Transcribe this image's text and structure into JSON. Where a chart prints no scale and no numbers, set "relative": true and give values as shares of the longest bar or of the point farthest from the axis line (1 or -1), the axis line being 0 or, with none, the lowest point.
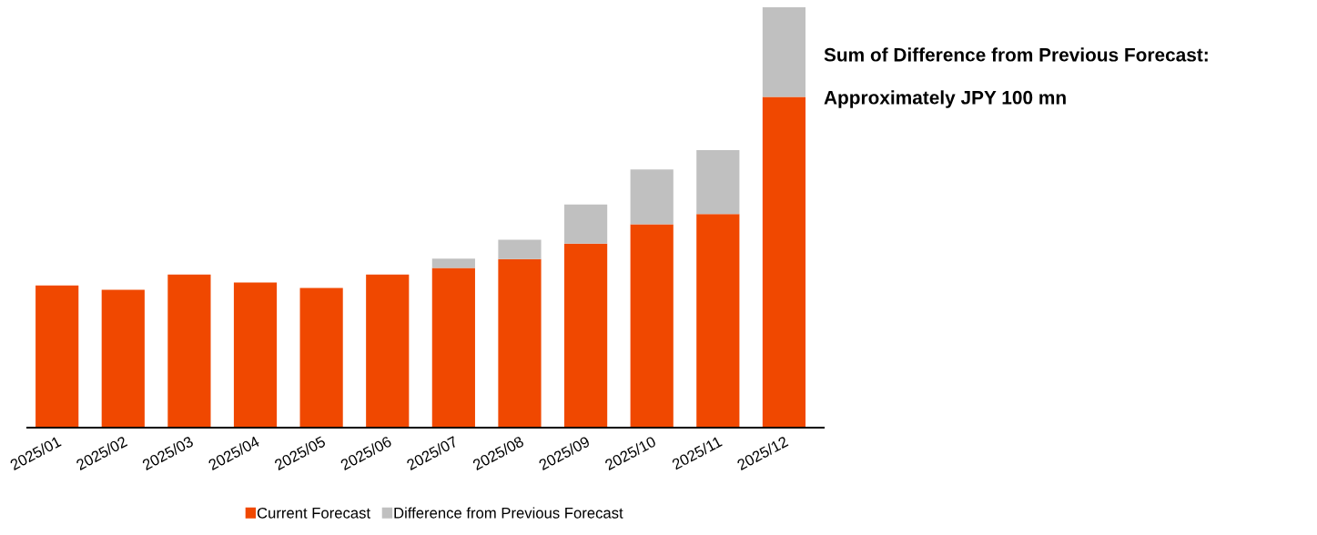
{
  "chart_data": {
    "type": "bar",
    "stacked": true,
    "relative": true,
    "categories": [
      "2025/01",
      "2025/02",
      "2025/03",
      "2025/04",
      "2025/05",
      "2025/06",
      "2025/07",
      "2025/08",
      "2025/09",
      "2025/10",
      "2025/11",
      "2025/12"
    ],
    "series": [
      {
        "name": "Current Forecast",
        "color": "#f04800",
        "values": [
          0.338,
          0.328,
          0.364,
          0.345,
          0.332,
          0.364,
          0.38,
          0.401,
          0.438,
          0.484,
          0.508,
          0.787
        ]
      },
      {
        "name": "Difference from Previous Forecast",
        "color": "#c0c0c0",
        "values": [
          0,
          0,
          0,
          0,
          0,
          0,
          0.022,
          0.046,
          0.093,
          0.13,
          0.152,
          0.213
        ]
      }
    ],
    "annotations": [
      "Sum of Difference from Previous Forecast:",
      "Approximately JPY 100 mn"
    ],
    "legend": "bottom",
    "grid": false
  }
}
